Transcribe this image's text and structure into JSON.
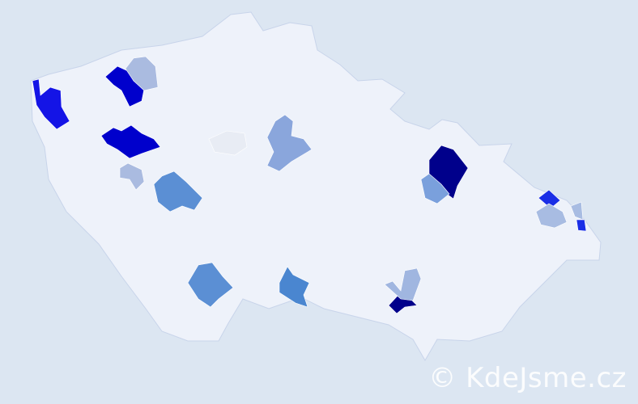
{
  "map": {
    "background_color": "#dce6f2",
    "base_region_color": "#eef2fa",
    "border_color": "#c8d4ea",
    "highlighted_regions": [
      {
        "id": "r1",
        "color": "#1414e6"
      },
      {
        "id": "r2",
        "color": "#0000cc"
      },
      {
        "id": "r3",
        "color": "#aabbe0"
      },
      {
        "id": "r4",
        "color": "#0000cc"
      },
      {
        "id": "r5",
        "color": "#e8ecf4"
      },
      {
        "id": "r6",
        "color": "#8aa6dc"
      },
      {
        "id": "r7",
        "color": "#aabbe0"
      },
      {
        "id": "r8",
        "color": "#5b8fd4"
      },
      {
        "id": "r9",
        "color": "#5b8fd4"
      },
      {
        "id": "r10",
        "color": "#4a86d0"
      },
      {
        "id": "r11",
        "color": "#00008b"
      },
      {
        "id": "r12",
        "color": "#7aa0dc"
      },
      {
        "id": "r13",
        "color": "#00008b"
      },
      {
        "id": "r14",
        "color": "#a0b6e0"
      },
      {
        "id": "r15",
        "color": "#1a2ee6"
      },
      {
        "id": "r16",
        "color": "#a8bce2"
      },
      {
        "id": "r17",
        "color": "#a8bce2"
      },
      {
        "id": "r18",
        "color": "#1a2ee6"
      }
    ]
  },
  "watermark": "© KdeJsme.cz"
}
